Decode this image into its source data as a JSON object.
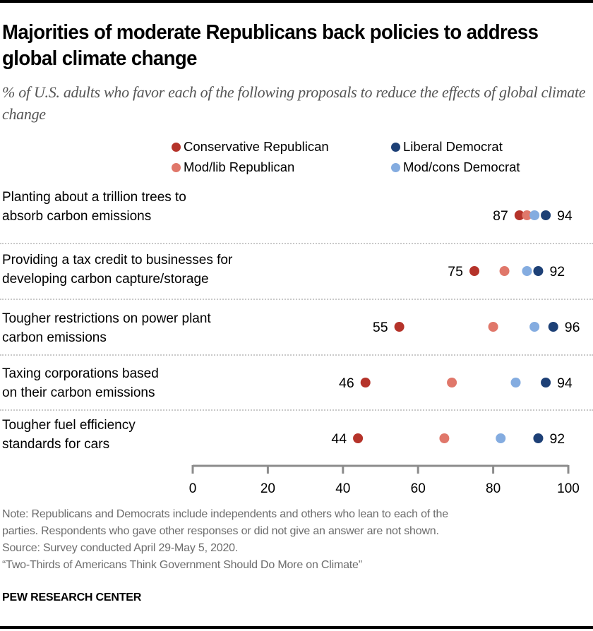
{
  "title": "Majorities of moderate Republicans back policies to address global climate change",
  "subtitle": "% of U.S. adults who favor each of the following proposals to reduce the effects of global climate change",
  "legend": [
    {
      "name": "Conservative Republican",
      "color": "#B5332A"
    },
    {
      "name": "Liberal Democrat",
      "color": "#1D4076"
    },
    {
      "name": "Mod/lib Republican",
      "color": "#E0776A"
    },
    {
      "name": "Mod/cons Democrat",
      "color": "#84ACE0"
    }
  ],
  "notes": {
    "note_line1": "Note: Republicans and Democrats include independents and others who lean to each of the",
    "note_line2": "parties. Respondents who gave other responses or did not give an answer are not shown.",
    "source": "Source: Survey conducted April 29-May 5, 2020.",
    "report": "“Two-Thirds of Americans Think Government Should Do More on Climate”"
  },
  "brand": "PEW RESEARCH CENTER",
  "chart_data": {
    "type": "scatter",
    "subtype": "dot-plot",
    "title": "Majorities of moderate Republicans back policies to address global climate change",
    "subtitle": "% of U.S. adults who favor each of the following proposals to reduce the effects of global climate change",
    "xlabel": "",
    "ylabel": "",
    "xlim": [
      0,
      100
    ],
    "xticks": [
      0,
      20,
      40,
      60,
      80,
      100
    ],
    "grid": false,
    "legend_position": "top-right",
    "categories": [
      [
        "Planting about a trillion trees to",
        "absorb carbon emissions"
      ],
      [
        "Providing a tax credit to businesses for",
        "developing carbon capture/storage"
      ],
      [
        "Tougher restrictions on power plant",
        "carbon emissions"
      ],
      [
        "Taxing corporations based",
        "on their carbon emissions"
      ],
      [
        "Tougher fuel efficiency",
        "standards for cars"
      ]
    ],
    "series": [
      {
        "name": "Conservative Republican",
        "color": "#B5332A",
        "values": [
          87,
          75,
          55,
          46,
          44
        ],
        "labeled": true
      },
      {
        "name": "Mod/lib Republican",
        "color": "#E0776A",
        "values": [
          89,
          83,
          80,
          69,
          67
        ],
        "labeled": false
      },
      {
        "name": "Mod/cons Democrat",
        "color": "#84ACE0",
        "values": [
          91,
          89,
          91,
          86,
          82
        ],
        "labeled": false
      },
      {
        "name": "Liberal Democrat",
        "color": "#1D4076",
        "values": [
          94,
          92,
          96,
          94,
          92
        ],
        "labeled": true
      }
    ]
  }
}
